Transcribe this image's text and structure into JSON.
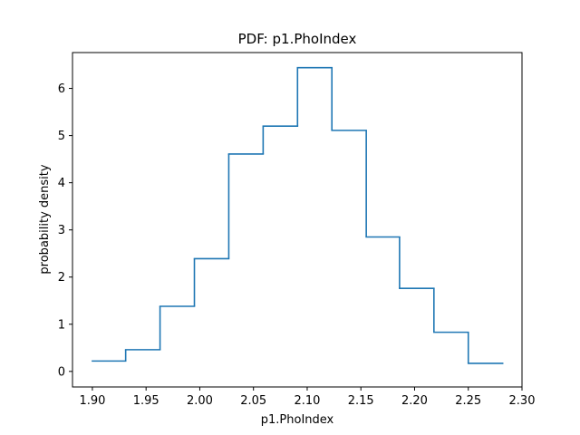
{
  "chart_data": {
    "type": "step-histogram",
    "title": "PDF: p1.PhoIndex",
    "xlabel": "p1.PhoIndex",
    "ylabel": "probability density",
    "xlim": [
      1.8815,
      2.3
    ],
    "ylim": [
      -0.33,
      6.76
    ],
    "xticks": [
      {
        "value": 1.9,
        "label": "1.90"
      },
      {
        "value": 1.95,
        "label": "1.95"
      },
      {
        "value": 2.0,
        "label": "2.00"
      },
      {
        "value": 2.05,
        "label": "2.05"
      },
      {
        "value": 2.1,
        "label": "2.10"
      },
      {
        "value": 2.15,
        "label": "2.15"
      },
      {
        "value": 2.2,
        "label": "2.20"
      },
      {
        "value": 2.25,
        "label": "2.25"
      },
      {
        "value": 2.3,
        "label": "2.30"
      }
    ],
    "yticks": [
      {
        "value": 0,
        "label": "0"
      },
      {
        "value": 1,
        "label": "1"
      },
      {
        "value": 2,
        "label": "2"
      },
      {
        "value": 3,
        "label": "3"
      },
      {
        "value": 4,
        "label": "4"
      },
      {
        "value": 5,
        "label": "5"
      },
      {
        "value": 6,
        "label": "6"
      }
    ],
    "bin_edges": [
      1.9,
      1.931,
      1.963,
      1.995,
      2.027,
      2.059,
      2.091,
      2.123,
      2.155,
      2.186,
      2.218,
      2.25,
      2.282
    ],
    "values": [
      0.22,
      0.46,
      1.38,
      2.39,
      4.61,
      5.2,
      6.44,
      5.11,
      2.85,
      1.76,
      0.83,
      0.17
    ],
    "line_color": "#1f77b4",
    "grid": false
  }
}
